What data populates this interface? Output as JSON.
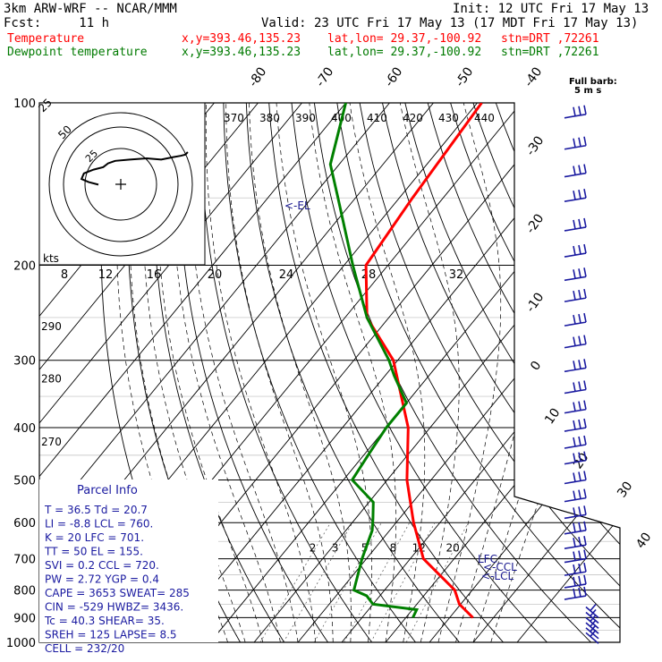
{
  "header": {
    "model": "3km ARW-WRF -- NCAR/MMM",
    "init": "Init: 12 UTC Fri 17 May 13",
    "fcst": "Fcst:     11 h",
    "valid": "Valid: 23 UTC Fri 17 May 13 (17 MDT Fri 17 May 13)",
    "temp_label": "Temperature",
    "dew_label": "Dewpoint temperature",
    "xy": "x,y=393.46,135.23",
    "latlon": "lat,lon= 29.37,-100.92",
    "stn": "stn=DRT ,72261"
  },
  "colors": {
    "temperature": "#ff0000",
    "dewpoint": "#008000",
    "wind": "#1a1aa0",
    "grid": "#000000"
  },
  "chart_data": {
    "type": "line",
    "diagram": "skew-T log-p",
    "pressure_levels": [
      100,
      200,
      300,
      400,
      500,
      600,
      700,
      800,
      900,
      1000
    ],
    "pressure_range": [
      1000,
      100
    ],
    "isotherm_labels": [
      "-80",
      "-70",
      "-60",
      "-50",
      "-40",
      "-30",
      "-20",
      "-10",
      "0",
      "10",
      "20",
      "30",
      "40"
    ],
    "isotherm_values": [
      -80,
      -70,
      -60,
      -50,
      -40,
      -30,
      -20,
      -10,
      0,
      10,
      20,
      30,
      40
    ],
    "theta_e_labels": [
      "370",
      "380",
      "390",
      "400",
      "410",
      "420",
      "430",
      "440"
    ],
    "dry_adiabat_labels": [
      "290",
      "280",
      "270"
    ],
    "dry_adiabat_values": [
      290,
      280,
      270
    ],
    "mixing_ratio_labels": [
      "2",
      "3",
      "5",
      "8",
      "12",
      "20"
    ],
    "mixing_ratio_values": [
      2,
      3,
      5,
      8,
      12,
      20
    ],
    "series": [
      {
        "name": "Temperature",
        "points": [
          [
            900,
            35.3
          ],
          [
            870,
            32
          ],
          [
            850,
            29.7
          ],
          [
            800,
            26
          ],
          [
            700,
            13
          ],
          [
            600,
            4
          ],
          [
            500,
            -5.5
          ],
          [
            400,
            -15
          ],
          [
            300,
            -31
          ],
          [
            250,
            -45
          ],
          [
            200,
            -55
          ],
          [
            150,
            -57
          ],
          [
            100,
            -59
          ]
        ]
      },
      {
        "name": "Dewpoint temperature",
        "points": [
          [
            900,
            21.6
          ],
          [
            870,
            21
          ],
          [
            850,
            10
          ],
          [
            820,
            7
          ],
          [
            800,
            3
          ],
          [
            700,
            -1
          ],
          [
            620,
            -4
          ],
          [
            590,
            -6
          ],
          [
            550,
            -9
          ],
          [
            500,
            -18
          ],
          [
            450,
            -19
          ],
          [
            400,
            -20
          ],
          [
            360,
            -20
          ],
          [
            320,
            -28
          ],
          [
            300,
            -32
          ],
          [
            250,
            -45
          ],
          [
            200,
            -58
          ],
          [
            150,
            -74
          ],
          [
            130,
            -82
          ],
          [
            100,
            -90
          ]
        ]
      }
    ],
    "annotations": [
      "<-EL",
      "LFC",
      "<-CCL",
      "<-LCL",
      "Full barb:",
      "5 m s"
    ],
    "annotation_pressures": {
      "EL": 155,
      "LFC": 701,
      "CCL": 720,
      "LCL": 760
    },
    "hodograph": {
      "unit_label": "kts",
      "speed_ticks": [
        "8",
        "12",
        "16",
        "20",
        "24",
        "28",
        "32"
      ],
      "ring_labels": [
        "25",
        "50"
      ],
      "ring_values": [
        25,
        50
      ],
      "trace": [
        [
          0,
          -12
        ],
        [
          -8,
          -8
        ],
        [
          -14,
          -3
        ],
        [
          -12,
          6
        ],
        [
          -4,
          12
        ],
        [
          4,
          16
        ],
        [
          8,
          22
        ],
        [
          14,
          26
        ],
        [
          26,
          28
        ],
        [
          40,
          30
        ],
        [
          52,
          28
        ],
        [
          62,
          32
        ],
        [
          68,
          34
        ],
        [
          72,
          36
        ],
        [
          74,
          40
        ]
      ]
    },
    "wind_barb_pressures": [
      105,
      120,
      135,
      150,
      170,
      190,
      210,
      230,
      255,
      280,
      310,
      340,
      370,
      400,
      430,
      460,
      500,
      540,
      580,
      620,
      660,
      700,
      740,
      780,
      820,
      860,
      880,
      900,
      920,
      940,
      960
    ]
  },
  "parcel_info": {
    "title": "Parcel Info",
    "rows": [
      "T  =   36.5  Td =  20.7",
      "LI =   -8.8  LCL =  760.",
      "K  =     20  LFC =  701.",
      "TT =     50  EL  =  155.",
      "SVI =   0.2  CCL =  720.",
      "PW =   2.72  YGP =   0.4",
      "CAPE =  3653  SWEAT=  285",
      "CIN =  -529  HWBZ= 3436.",
      "Tc  =  40.3  SHEAR=  35.",
      "SREH =  125  LAPSE=  8.5",
      "CELL = 232/20"
    ]
  }
}
